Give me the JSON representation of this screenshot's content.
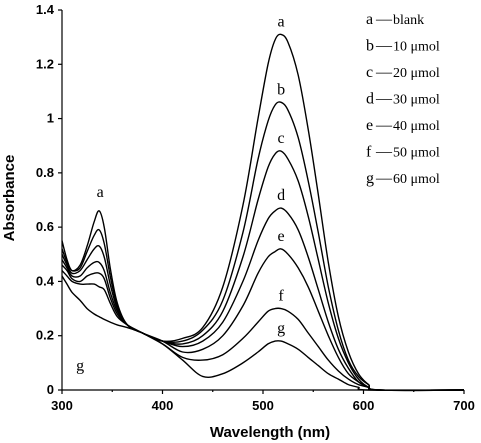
{
  "chart_data": {
    "type": "line",
    "xlabel": "Wavelength (nm)",
    "ylabel": "Absorbance",
    "xlim": [
      300,
      700
    ],
    "ylim": [
      0,
      1.4
    ],
    "x_ticks": [
      "300",
      "400",
      "500",
      "600",
      "700"
    ],
    "y_ticks": [
      "0",
      "0.2",
      "0.4",
      "0.6",
      "0.8",
      "1",
      "1.2",
      "1.4"
    ],
    "grid": false,
    "legend_position": "top-right",
    "series": [
      {
        "name": "a",
        "legend_text": "blank",
        "legend_dash": "—",
        "points": [
          [
            300,
            0.55
          ],
          [
            305,
            0.48
          ],
          [
            310,
            0.44
          ],
          [
            318,
            0.46
          ],
          [
            325,
            0.53
          ],
          [
            332,
            0.62
          ],
          [
            337,
            0.66
          ],
          [
            342,
            0.6
          ],
          [
            348,
            0.45
          ],
          [
            355,
            0.32
          ],
          [
            365,
            0.24
          ],
          [
            380,
            0.21
          ],
          [
            400,
            0.18
          ],
          [
            420,
            0.19
          ],
          [
            440,
            0.23
          ],
          [
            460,
            0.38
          ],
          [
            480,
            0.68
          ],
          [
            495,
            1.0
          ],
          [
            505,
            1.2
          ],
          [
            512,
            1.29
          ],
          [
            518,
            1.31
          ],
          [
            525,
            1.28
          ],
          [
            535,
            1.16
          ],
          [
            545,
            0.96
          ],
          [
            555,
            0.72
          ],
          [
            565,
            0.47
          ],
          [
            575,
            0.27
          ],
          [
            585,
            0.14
          ],
          [
            595,
            0.06
          ],
          [
            605,
            0.02
          ],
          [
            615,
            0.0
          ],
          [
            700,
            0.0
          ]
        ],
        "label_at": [
          518,
          1.31
        ]
      },
      {
        "name": "b",
        "legend_text": "10 μmol",
        "legend_dash": "—",
        "points": [
          [
            300,
            0.52
          ],
          [
            305,
            0.47
          ],
          [
            310,
            0.44
          ],
          [
            318,
            0.45
          ],
          [
            325,
            0.51
          ],
          [
            332,
            0.57
          ],
          [
            337,
            0.59
          ],
          [
            342,
            0.54
          ],
          [
            348,
            0.42
          ],
          [
            355,
            0.31
          ],
          [
            365,
            0.24
          ],
          [
            380,
            0.21
          ],
          [
            400,
            0.18
          ],
          [
            420,
            0.18
          ],
          [
            440,
            0.22
          ],
          [
            460,
            0.33
          ],
          [
            480,
            0.58
          ],
          [
            495,
            0.85
          ],
          [
            505,
            0.99
          ],
          [
            512,
            1.05
          ],
          [
            518,
            1.06
          ],
          [
            525,
            1.03
          ],
          [
            535,
            0.93
          ],
          [
            545,
            0.77
          ],
          [
            555,
            0.58
          ],
          [
            565,
            0.38
          ],
          [
            575,
            0.22
          ],
          [
            585,
            0.11
          ],
          [
            595,
            0.05
          ],
          [
            605,
            0.02
          ],
          [
            615,
            0.0
          ],
          [
            700,
            0.0
          ]
        ],
        "label_at": [
          518,
          1.06
        ]
      },
      {
        "name": "c",
        "legend_text": "20 μmol",
        "legend_dash": "—",
        "points": [
          [
            300,
            0.5
          ],
          [
            305,
            0.46
          ],
          [
            310,
            0.43
          ],
          [
            318,
            0.44
          ],
          [
            325,
            0.48
          ],
          [
            332,
            0.52
          ],
          [
            337,
            0.53
          ],
          [
            342,
            0.49
          ],
          [
            348,
            0.39
          ],
          [
            355,
            0.3
          ],
          [
            365,
            0.24
          ],
          [
            380,
            0.21
          ],
          [
            400,
            0.18
          ],
          [
            420,
            0.17
          ],
          [
            440,
            0.2
          ],
          [
            460,
            0.29
          ],
          [
            480,
            0.49
          ],
          [
            495,
            0.7
          ],
          [
            505,
            0.82
          ],
          [
            512,
            0.87
          ],
          [
            518,
            0.88
          ],
          [
            525,
            0.85
          ],
          [
            535,
            0.77
          ],
          [
            545,
            0.64
          ],
          [
            555,
            0.48
          ],
          [
            565,
            0.32
          ],
          [
            575,
            0.19
          ],
          [
            585,
            0.1
          ],
          [
            595,
            0.04
          ],
          [
            605,
            0.01
          ],
          [
            615,
            0.0
          ],
          [
            700,
            0.0
          ]
        ],
        "label_at": [
          518,
          0.88
        ]
      },
      {
        "name": "d",
        "legend_text": "30 μmol",
        "legend_dash": "—",
        "points": [
          [
            300,
            0.48
          ],
          [
            305,
            0.45
          ],
          [
            310,
            0.42
          ],
          [
            318,
            0.42
          ],
          [
            325,
            0.45
          ],
          [
            332,
            0.47
          ],
          [
            337,
            0.47
          ],
          [
            342,
            0.44
          ],
          [
            348,
            0.36
          ],
          [
            355,
            0.29
          ],
          [
            365,
            0.24
          ],
          [
            380,
            0.21
          ],
          [
            400,
            0.18
          ],
          [
            420,
            0.16
          ],
          [
            440,
            0.18
          ],
          [
            460,
            0.25
          ],
          [
            480,
            0.4
          ],
          [
            495,
            0.55
          ],
          [
            505,
            0.63
          ],
          [
            512,
            0.66
          ],
          [
            518,
            0.67
          ],
          [
            525,
            0.65
          ],
          [
            535,
            0.59
          ],
          [
            545,
            0.49
          ],
          [
            555,
            0.37
          ],
          [
            565,
            0.25
          ],
          [
            575,
            0.15
          ],
          [
            585,
            0.08
          ],
          [
            595,
            0.03
          ],
          [
            605,
            0.01
          ],
          [
            615,
            0.0
          ],
          [
            700,
            0.0
          ]
        ],
        "label_at": [
          518,
          0.67
        ]
      },
      {
        "name": "e",
        "legend_text": "40 μmol",
        "legend_dash": "—",
        "points": [
          [
            300,
            0.46
          ],
          [
            305,
            0.44
          ],
          [
            310,
            0.41
          ],
          [
            318,
            0.4
          ],
          [
            325,
            0.42
          ],
          [
            332,
            0.43
          ],
          [
            337,
            0.43
          ],
          [
            342,
            0.41
          ],
          [
            348,
            0.34
          ],
          [
            355,
            0.28
          ],
          [
            365,
            0.24
          ],
          [
            380,
            0.21
          ],
          [
            400,
            0.18
          ],
          [
            420,
            0.14
          ],
          [
            440,
            0.15
          ],
          [
            460,
            0.2
          ],
          [
            480,
            0.31
          ],
          [
            495,
            0.43
          ],
          [
            505,
            0.49
          ],
          [
            512,
            0.51
          ],
          [
            518,
            0.52
          ],
          [
            525,
            0.5
          ],
          [
            535,
            0.45
          ],
          [
            545,
            0.38
          ],
          [
            555,
            0.29
          ],
          [
            565,
            0.2
          ],
          [
            575,
            0.12
          ],
          [
            585,
            0.06
          ],
          [
            595,
            0.03
          ],
          [
            605,
            0.01
          ],
          [
            615,
            0.0
          ],
          [
            700,
            0.0
          ]
        ],
        "label_at": [
          518,
          0.52
        ]
      },
      {
        "name": "f",
        "legend_text": "50 μmol",
        "legend_dash": "—",
        "points": [
          [
            300,
            0.44
          ],
          [
            305,
            0.42
          ],
          [
            310,
            0.4
          ],
          [
            318,
            0.39
          ],
          [
            325,
            0.39
          ],
          [
            332,
            0.39
          ],
          [
            337,
            0.38
          ],
          [
            342,
            0.37
          ],
          [
            348,
            0.32
          ],
          [
            355,
            0.27
          ],
          [
            365,
            0.24
          ],
          [
            380,
            0.21
          ],
          [
            400,
            0.17
          ],
          [
            420,
            0.12
          ],
          [
            440,
            0.11
          ],
          [
            460,
            0.13
          ],
          [
            480,
            0.19
          ],
          [
            495,
            0.25
          ],
          [
            505,
            0.29
          ],
          [
            512,
            0.3
          ],
          [
            518,
            0.3
          ],
          [
            525,
            0.29
          ],
          [
            535,
            0.26
          ],
          [
            545,
            0.21
          ],
          [
            555,
            0.16
          ],
          [
            565,
            0.11
          ],
          [
            575,
            0.07
          ],
          [
            585,
            0.04
          ],
          [
            595,
            0.02
          ],
          [
            605,
            0.01
          ],
          [
            615,
            0.0
          ],
          [
            700,
            0.0
          ]
        ],
        "label_at": [
          518,
          0.3
        ]
      },
      {
        "name": "g",
        "legend_text": "60 μmol",
        "legend_dash": "—",
        "points": [
          [
            300,
            0.42
          ],
          [
            305,
            0.39
          ],
          [
            310,
            0.36
          ],
          [
            318,
            0.33
          ],
          [
            325,
            0.3
          ],
          [
            332,
            0.28
          ],
          [
            337,
            0.27
          ],
          [
            342,
            0.26
          ],
          [
            348,
            0.25
          ],
          [
            355,
            0.24
          ],
          [
            365,
            0.23
          ],
          [
            380,
            0.21
          ],
          [
            400,
            0.17
          ],
          [
            420,
            0.11
          ],
          [
            440,
            0.05
          ],
          [
            460,
            0.06
          ],
          [
            480,
            0.1
          ],
          [
            495,
            0.14
          ],
          [
            505,
            0.17
          ],
          [
            512,
            0.18
          ],
          [
            518,
            0.18
          ],
          [
            525,
            0.17
          ],
          [
            535,
            0.15
          ],
          [
            545,
            0.12
          ],
          [
            555,
            0.09
          ],
          [
            565,
            0.06
          ],
          [
            575,
            0.04
          ],
          [
            585,
            0.02
          ],
          [
            595,
            0.01
          ],
          [
            605,
            0.0
          ],
          [
            700,
            0.0
          ]
        ],
        "label_at": [
          518,
          0.18
        ]
      }
    ],
    "extra_labels": [
      {
        "text": "a",
        "x": 338,
        "y": 0.66
      },
      {
        "text": "g",
        "x": 318,
        "y": 0.27
      }
    ]
  }
}
